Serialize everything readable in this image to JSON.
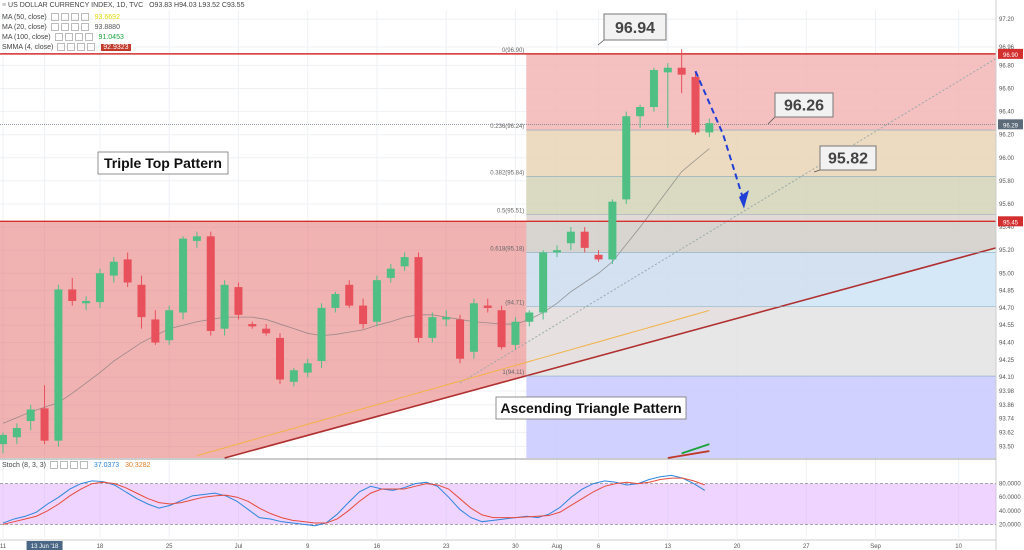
{
  "header": {
    "title": "US DOLLAR CURRENCY INDEX, 1D, TVC",
    "ohlc": "O93.83 H94.03 L93.52 C93.55",
    "indicators": [
      {
        "label": "MA (50, close)",
        "value": "93.6692",
        "color": "#e6d900"
      },
      {
        "label": "MA (20, close)",
        "value": "93.8880",
        "color": "#555555"
      },
      {
        "label": "MA (100, close)",
        "value": "91.0453",
        "color": "#1aa33a"
      },
      {
        "label": "SMMA (4, close)",
        "value": "92.9323",
        "color": "#c0392b"
      }
    ],
    "stoch_label": "Stoch (8, 3, 3)",
    "stoch_k": "37.0373",
    "stoch_d": "30.3282"
  },
  "annotations": {
    "triple_top": "Triple Top Pattern",
    "ascending_triangle": "Ascending Triangle Pattern",
    "callout_high": "96.94",
    "callout_mid": "96.26",
    "callout_low": "95.82"
  },
  "chart_data": {
    "type": "candlestick",
    "y_range": [
      93.4,
      97.28
    ],
    "y_ticks": [
      "97.20",
      "96.96",
      "96.80",
      "96.60",
      "96.40",
      "96.20",
      "96.00",
      "95.80",
      "95.60",
      "95.40",
      "95.20",
      "95.00",
      "94.85",
      "94.70",
      "94.55",
      "94.40",
      "94.25",
      "94.10",
      "93.98",
      "93.86",
      "93.74",
      "93.62",
      "93.50"
    ],
    "x_ticks": [
      {
        "label": "11",
        "i": 0
      },
      {
        "label": "13 Jun '18",
        "i": 3
      },
      {
        "label": "18",
        "i": 7
      },
      {
        "label": "25",
        "i": 12
      },
      {
        "label": "Jul",
        "i": 17
      },
      {
        "label": "9",
        "i": 22
      },
      {
        "label": "16",
        "i": 27
      },
      {
        "label": "23",
        "i": 32
      },
      {
        "label": "30",
        "i": 37
      },
      {
        "label": "Aug",
        "i": 40
      },
      {
        "label": "6",
        "i": 43
      },
      {
        "label": "13",
        "i": 48
      },
      {
        "label": "20",
        "i": 53
      },
      {
        "label": "27",
        "i": 58
      },
      {
        "label": "Sep",
        "i": 63
      },
      {
        "label": "10",
        "i": 69
      }
    ],
    "candles": [
      {
        "o": 93.52,
        "h": 93.62,
        "l": 93.44,
        "c": 93.6
      },
      {
        "o": 93.58,
        "h": 93.7,
        "l": 93.52,
        "c": 93.66
      },
      {
        "o": 93.72,
        "h": 93.86,
        "l": 93.64,
        "c": 93.82
      },
      {
        "o": 93.83,
        "h": 94.03,
        "l": 93.52,
        "c": 93.55
      },
      {
        "o": 93.55,
        "h": 94.9,
        "l": 93.5,
        "c": 94.86
      },
      {
        "o": 94.86,
        "h": 94.96,
        "l": 94.72,
        "c": 94.76
      },
      {
        "o": 94.74,
        "h": 94.8,
        "l": 94.68,
        "c": 94.76
      },
      {
        "o": 94.75,
        "h": 95.04,
        "l": 94.7,
        "c": 95.0
      },
      {
        "o": 94.98,
        "h": 95.14,
        "l": 94.92,
        "c": 95.1
      },
      {
        "o": 95.12,
        "h": 95.18,
        "l": 94.88,
        "c": 94.92
      },
      {
        "o": 94.9,
        "h": 94.98,
        "l": 94.52,
        "c": 94.62
      },
      {
        "o": 94.6,
        "h": 94.68,
        "l": 94.38,
        "c": 94.4
      },
      {
        "o": 94.42,
        "h": 94.72,
        "l": 94.38,
        "c": 94.68
      },
      {
        "o": 94.66,
        "h": 95.32,
        "l": 94.6,
        "c": 95.3
      },
      {
        "o": 95.28,
        "h": 95.36,
        "l": 95.22,
        "c": 95.32
      },
      {
        "o": 95.32,
        "h": 95.36,
        "l": 94.46,
        "c": 94.5
      },
      {
        "o": 94.52,
        "h": 94.94,
        "l": 94.46,
        "c": 94.9
      },
      {
        "o": 94.88,
        "h": 94.92,
        "l": 94.6,
        "c": 94.64
      },
      {
        "o": 94.56,
        "h": 94.58,
        "l": 94.52,
        "c": 94.54
      },
      {
        "o": 94.52,
        "h": 94.56,
        "l": 94.46,
        "c": 94.48
      },
      {
        "o": 94.44,
        "h": 94.48,
        "l": 94.04,
        "c": 94.08
      },
      {
        "o": 94.06,
        "h": 94.18,
        "l": 94.02,
        "c": 94.16
      },
      {
        "o": 94.14,
        "h": 94.26,
        "l": 94.1,
        "c": 94.22
      },
      {
        "o": 94.24,
        "h": 94.74,
        "l": 94.18,
        "c": 94.7
      },
      {
        "o": 94.7,
        "h": 94.84,
        "l": 94.66,
        "c": 94.82
      },
      {
        "o": 94.9,
        "h": 94.94,
        "l": 94.7,
        "c": 94.72
      },
      {
        "o": 94.72,
        "h": 94.78,
        "l": 94.52,
        "c": 94.56
      },
      {
        "o": 94.58,
        "h": 94.98,
        "l": 94.54,
        "c": 94.94
      },
      {
        "o": 94.96,
        "h": 95.08,
        "l": 94.92,
        "c": 95.04
      },
      {
        "o": 95.06,
        "h": 95.18,
        "l": 95.02,
        "c": 95.14
      },
      {
        "o": 95.14,
        "h": 95.18,
        "l": 94.4,
        "c": 94.44
      },
      {
        "o": 94.44,
        "h": 94.66,
        "l": 94.4,
        "c": 94.62
      },
      {
        "o": 94.6,
        "h": 94.68,
        "l": 94.54,
        "c": 94.62
      },
      {
        "o": 94.6,
        "h": 94.64,
        "l": 94.22,
        "c": 94.26
      },
      {
        "o": 94.32,
        "h": 94.78,
        "l": 94.26,
        "c": 94.74
      },
      {
        "o": 94.72,
        "h": 94.78,
        "l": 94.66,
        "c": 94.7
      },
      {
        "o": 94.68,
        "h": 94.72,
        "l": 94.34,
        "c": 94.36
      },
      {
        "o": 94.38,
        "h": 94.62,
        "l": 94.34,
        "c": 94.58
      },
      {
        "o": 94.58,
        "h": 94.68,
        "l": 94.54,
        "c": 94.66
      },
      {
        "o": 94.66,
        "h": 95.2,
        "l": 94.6,
        "c": 95.18
      },
      {
        "o": 95.18,
        "h": 95.24,
        "l": 95.14,
        "c": 95.2
      },
      {
        "o": 95.26,
        "h": 95.4,
        "l": 95.2,
        "c": 95.36
      },
      {
        "o": 95.36,
        "h": 95.4,
        "l": 95.18,
        "c": 95.22
      },
      {
        "o": 95.16,
        "h": 95.2,
        "l": 95.1,
        "c": 95.12
      },
      {
        "o": 95.12,
        "h": 95.64,
        "l": 95.08,
        "c": 95.62
      },
      {
        "o": 95.64,
        "h": 96.4,
        "l": 95.6,
        "c": 96.36
      },
      {
        "o": 96.36,
        "h": 96.46,
        "l": 96.26,
        "c": 96.44
      },
      {
        "o": 96.44,
        "h": 96.78,
        "l": 96.4,
        "c": 96.76
      },
      {
        "o": 96.74,
        "h": 96.82,
        "l": 96.26,
        "c": 96.78
      },
      {
        "o": 96.78,
        "h": 96.94,
        "l": 96.56,
        "c": 96.72
      },
      {
        "o": 96.7,
        "h": 96.74,
        "l": 96.2,
        "c": 96.22
      },
      {
        "o": 96.22,
        "h": 96.34,
        "l": 96.18,
        "c": 96.3
      }
    ],
    "horizontal_lines": [
      {
        "price": 96.9,
        "color": "#d32f2f",
        "tag": "96.90"
      },
      {
        "price": 95.45,
        "color": "#d32f2f",
        "tag": "95.45"
      },
      {
        "price": 96.29,
        "color": "#5c6b7a",
        "tag": "96.29"
      }
    ],
    "fibonacci": [
      {
        "label": "0(96.90)",
        "price": 96.9
      },
      {
        "label": "0.236(96.24)",
        "price": 96.24
      },
      {
        "label": "0.382(95.84)",
        "price": 95.84
      },
      {
        "label": "0.5(95.51)",
        "price": 95.51
      },
      {
        "label": "0.618(95.18)",
        "price": 95.18
      },
      {
        "label": "(94.71)",
        "price": 94.71
      },
      {
        "label": "1(94.11)",
        "price": 94.11
      }
    ],
    "fib_range": [
      94.11,
      96.9
    ],
    "stochastic": {
      "range": [
        0,
        100
      ],
      "levels": [
        20,
        80
      ],
      "ticks": [
        "80.0000",
        "60.0000",
        "40.0000",
        "20.0000"
      ],
      "k": [
        22,
        28,
        32,
        38,
        50,
        60,
        72,
        80,
        84,
        83,
        78,
        68,
        58,
        50,
        44,
        48,
        55,
        62,
        64,
        66,
        62,
        54,
        42,
        30,
        28,
        24,
        22,
        20,
        18,
        22,
        35,
        52,
        68,
        76,
        72,
        70,
        74,
        80,
        82,
        76,
        60,
        42,
        30,
        24,
        26,
        28,
        30,
        32,
        30,
        35,
        45,
        60,
        72,
        80,
        84,
        82,
        78,
        80,
        86,
        90,
        92,
        88,
        80,
        70
      ],
      "d": [
        20,
        24,
        28,
        32,
        40,
        50,
        62,
        72,
        80,
        82,
        80,
        74,
        66,
        58,
        52,
        50,
        52,
        56,
        60,
        62,
        63,
        60,
        54,
        44,
        36,
        30,
        26,
        24,
        22,
        22,
        28,
        40,
        54,
        66,
        72,
        72,
        72,
        76,
        80,
        78,
        72,
        58,
        44,
        34,
        30,
        30,
        30,
        31,
        32,
        33,
        38,
        48,
        58,
        68,
        76,
        80,
        82,
        80,
        82,
        86,
        88,
        88,
        84,
        78
      ]
    }
  }
}
